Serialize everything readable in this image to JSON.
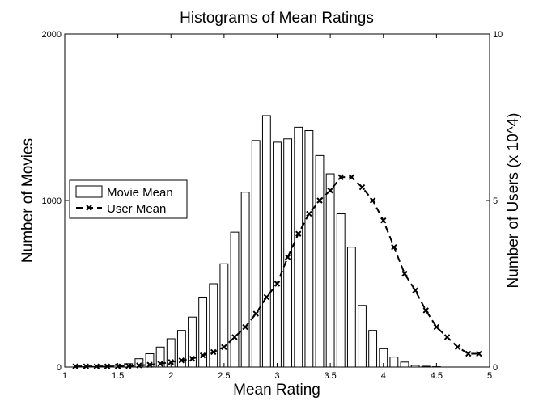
{
  "chart_data": {
    "type": "bar",
    "title": "Histograms of Mean Ratings",
    "xlabel": "Mean Rating",
    "ylabel": "Number of Movies",
    "y2label": "Number of Users (x 10^4)",
    "xlim": [
      1,
      5
    ],
    "ylim": [
      0,
      2000
    ],
    "y2lim": [
      0,
      10
    ],
    "x_ticks": [
      "1",
      "1.5",
      "2",
      "2.5",
      "3",
      "3.5",
      "4",
      "4.5",
      "5"
    ],
    "y_ticks": [
      "0",
      "1000",
      "2000"
    ],
    "y2_ticks": [
      "0",
      "5",
      "10"
    ],
    "legend": {
      "placement": "left",
      "entries": [
        "Movie Mean",
        "User Mean"
      ]
    },
    "series": [
      {
        "name": "Movie Mean",
        "type": "bar",
        "axis": "left",
        "x": [
          1.1,
          1.2,
          1.3,
          1.4,
          1.5,
          1.6,
          1.7,
          1.8,
          1.9,
          2.0,
          2.1,
          2.2,
          2.3,
          2.4,
          2.5,
          2.6,
          2.7,
          2.8,
          2.9,
          3.0,
          3.1,
          3.2,
          3.3,
          3.4,
          3.5,
          3.6,
          3.7,
          3.8,
          3.9,
          4.0,
          4.1,
          4.2,
          4.3,
          4.4,
          4.5,
          4.6,
          4.7,
          4.8,
          4.9
        ],
        "values": [
          0,
          2,
          3,
          5,
          10,
          20,
          50,
          80,
          120,
          170,
          220,
          300,
          420,
          500,
          620,
          810,
          1050,
          1360,
          1510,
          1350,
          1370,
          1440,
          1420,
          1270,
          1160,
          920,
          720,
          370,
          220,
          110,
          60,
          30,
          10,
          5,
          2,
          0,
          0,
          0,
          0
        ]
      },
      {
        "name": "User Mean",
        "type": "line",
        "axis": "right",
        "style": "dashed",
        "marker": "x",
        "x": [
          1.1,
          1.2,
          1.3,
          1.4,
          1.5,
          1.6,
          1.7,
          1.8,
          1.9,
          2.0,
          2.1,
          2.2,
          2.3,
          2.4,
          2.5,
          2.6,
          2.7,
          2.8,
          2.9,
          3.0,
          3.1,
          3.2,
          3.3,
          3.4,
          3.5,
          3.6,
          3.7,
          3.8,
          3.9,
          4.0,
          4.1,
          4.2,
          4.3,
          4.4,
          4.5,
          4.6,
          4.7,
          4.8,
          4.9
        ],
        "values": [
          0.02,
          0.02,
          0.02,
          0.02,
          0.02,
          0.03,
          0.05,
          0.07,
          0.1,
          0.15,
          0.2,
          0.25,
          0.35,
          0.45,
          0.6,
          0.9,
          1.2,
          1.6,
          2.1,
          2.5,
          3.3,
          4.0,
          4.6,
          5.0,
          5.3,
          5.7,
          5.7,
          5.4,
          5.0,
          4.4,
          3.6,
          2.8,
          2.3,
          1.7,
          1.2,
          0.9,
          0.6,
          0.4,
          0.4
        ]
      }
    ]
  }
}
